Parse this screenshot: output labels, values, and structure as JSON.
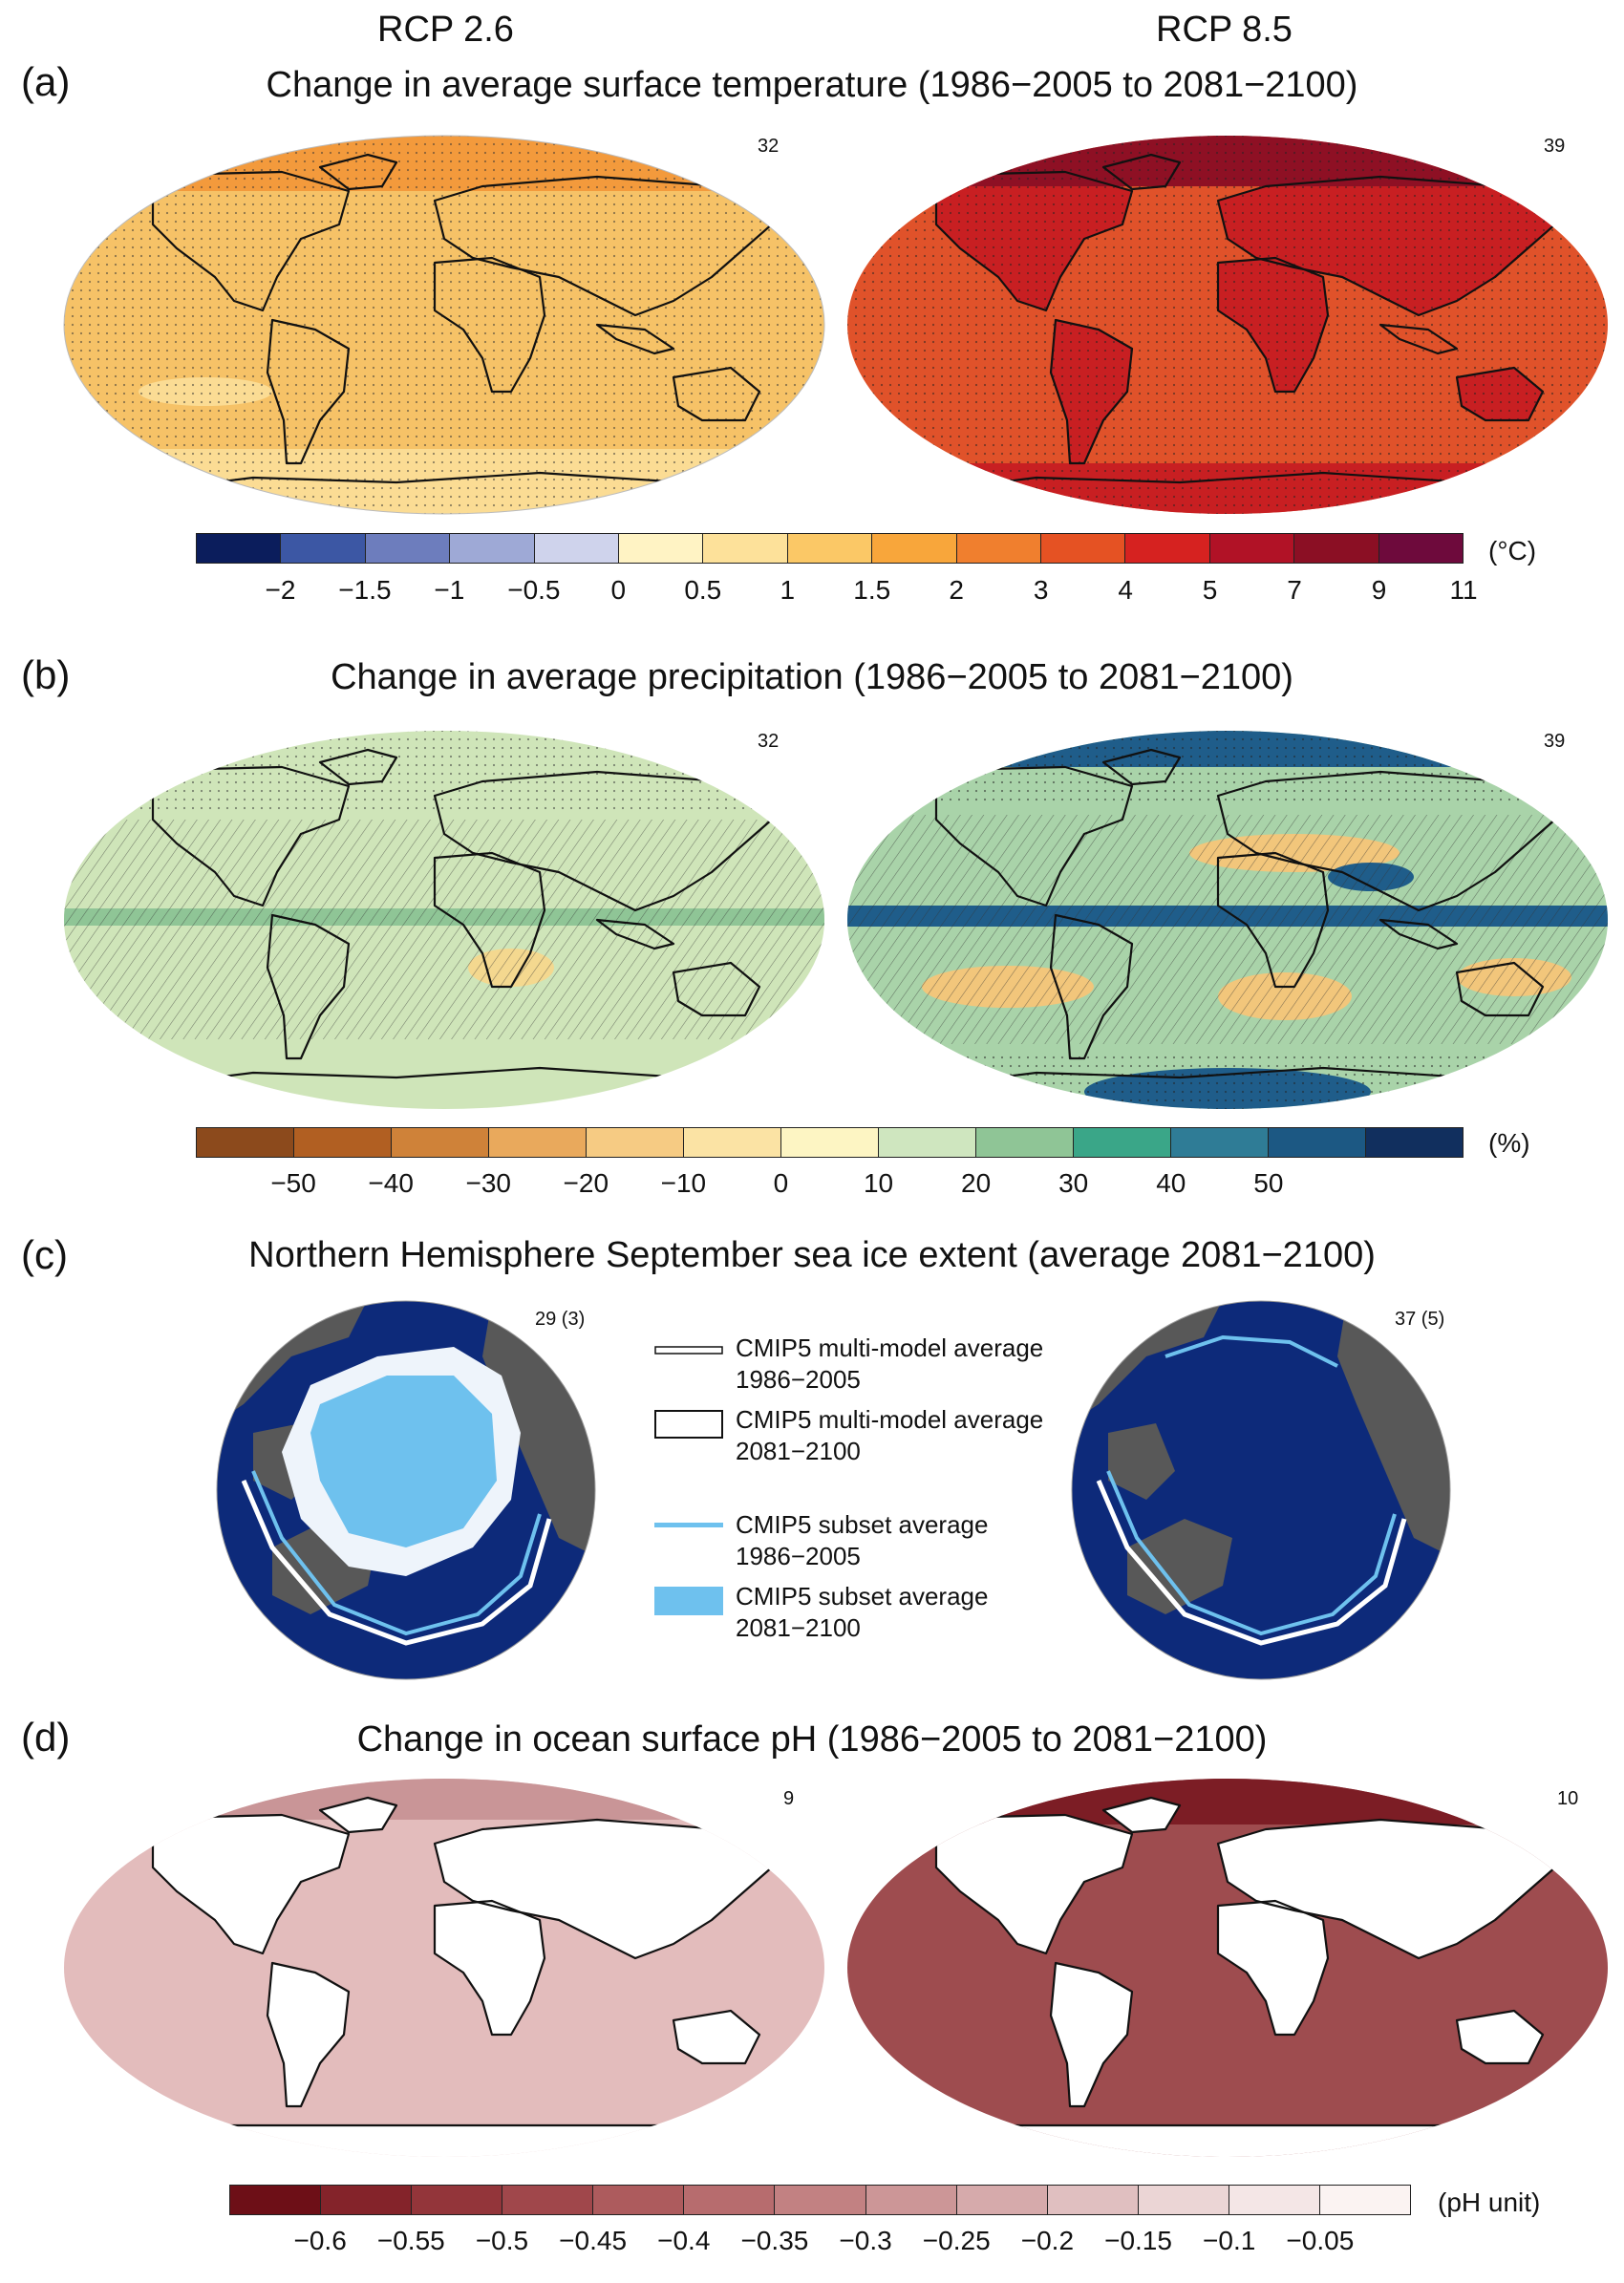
{
  "columns": [
    "RCP 2.6",
    "RCP 8.5"
  ],
  "panels": [
    {
      "letter": "(a)",
      "title": "Change in average surface temperature (1986−2005 to 2081−2100)",
      "counts": [
        "32",
        "39"
      ],
      "colorbar": {
        "colors": [
          "#0b1d5c",
          "#3c57a4",
          "#6d7dbd",
          "#9ea9d6",
          "#cfd3ec",
          "#fff3c4",
          "#fde19a",
          "#fbc866",
          "#f8a63b",
          "#f07f2e",
          "#e55223",
          "#d62220",
          "#b11226",
          "#8b0f24",
          "#6e0a3c"
        ],
        "ticks": [
          "−2",
          "−1.5",
          "−1",
          "−0.5",
          "0",
          "0.5",
          "1",
          "1.5",
          "2",
          "3",
          "4",
          "5",
          "7",
          "9",
          "11"
        ],
        "unit": "(°C)"
      }
    },
    {
      "letter": "(b)",
      "title": "Change in average precipitation (1986−2005 to 2081−2100)",
      "counts": [
        "32",
        "39"
      ],
      "colorbar": {
        "colors": [
          "#8c4a1c",
          "#b15f22",
          "#cf8239",
          "#e9a95c",
          "#f6cb83",
          "#fbe3a4",
          "#fdf5c3",
          "#cfe6bf",
          "#8fc596",
          "#3aa688",
          "#2f7c96",
          "#1c5883",
          "#112f5e"
        ],
        "ticks": [
          "−50",
          "−40",
          "−30",
          "−20",
          "−10",
          "0",
          "10",
          "20",
          "30",
          "40",
          "50"
        ],
        "unit": "(%)"
      }
    },
    {
      "letter": "(c)",
      "title": "Northern Hemisphere September sea ice extent (average 2081−2100)",
      "counts": [
        "29 (3)",
        "37 (5)"
      ],
      "legend": [
        {
          "symbol": "double-line",
          "text": "CMIP5 multi-model average 1986−2005"
        },
        {
          "symbol": "open-box",
          "text": "CMIP5 multi-model average 2081−2100"
        },
        {
          "symbol": "blue-line",
          "text": "CMIP5 subset average 1986−2005"
        },
        {
          "symbol": "blue-box",
          "text": "CMIP5 subset average 2081−2100"
        }
      ]
    },
    {
      "letter": "(d)",
      "title": "Change in ocean surface pH (1986−2005 to 2081−2100)",
      "counts": [
        "9",
        "10"
      ],
      "colorbar": {
        "colors": [
          "#6d0f17",
          "#84232a",
          "#93353a",
          "#a0474b",
          "#ad5b5d",
          "#b76c6e",
          "#c28182",
          "#cc9697",
          "#d6aaab",
          "#e0bfc0",
          "#ebd5d5",
          "#f4e6e6",
          "#fbf3f2"
        ],
        "ticks": [
          "−0.6",
          "−0.55",
          "−0.5",
          "−0.45",
          "−0.4",
          "−0.35",
          "−0.3",
          "−0.25",
          "−0.2",
          "−0.15",
          "−0.1",
          "−0.05"
        ],
        "unit": "(pH unit)"
      }
    }
  ],
  "map_colors": {
    "temp_low": "#f6c267",
    "temp_low_pole": "#f39a3c",
    "temp_low_band": "#fbdc94",
    "temp_high": "#e0522a",
    "temp_high_land": "#c81f22",
    "temp_high_pole": "#8e1024",
    "precip_low": "#cfe5b9",
    "precip_low_band": "#8fc596",
    "precip_dry": "#f4d88f",
    "precip_high": "#a9d3a9",
    "precip_high_wet": "#1f5d8a",
    "precip_high_dry": "#f2c67b",
    "ph_low": "#e3bcbc",
    "ph_low_pole": "#c99597",
    "ph_high": "#9e4c4f",
    "ph_high_pole": "#7c1d25",
    "ice_ocean": "#0d2a7a",
    "ice_land": "#585858",
    "ice_subset": "#6ec1ee",
    "ice_multi": "#ffffff"
  }
}
